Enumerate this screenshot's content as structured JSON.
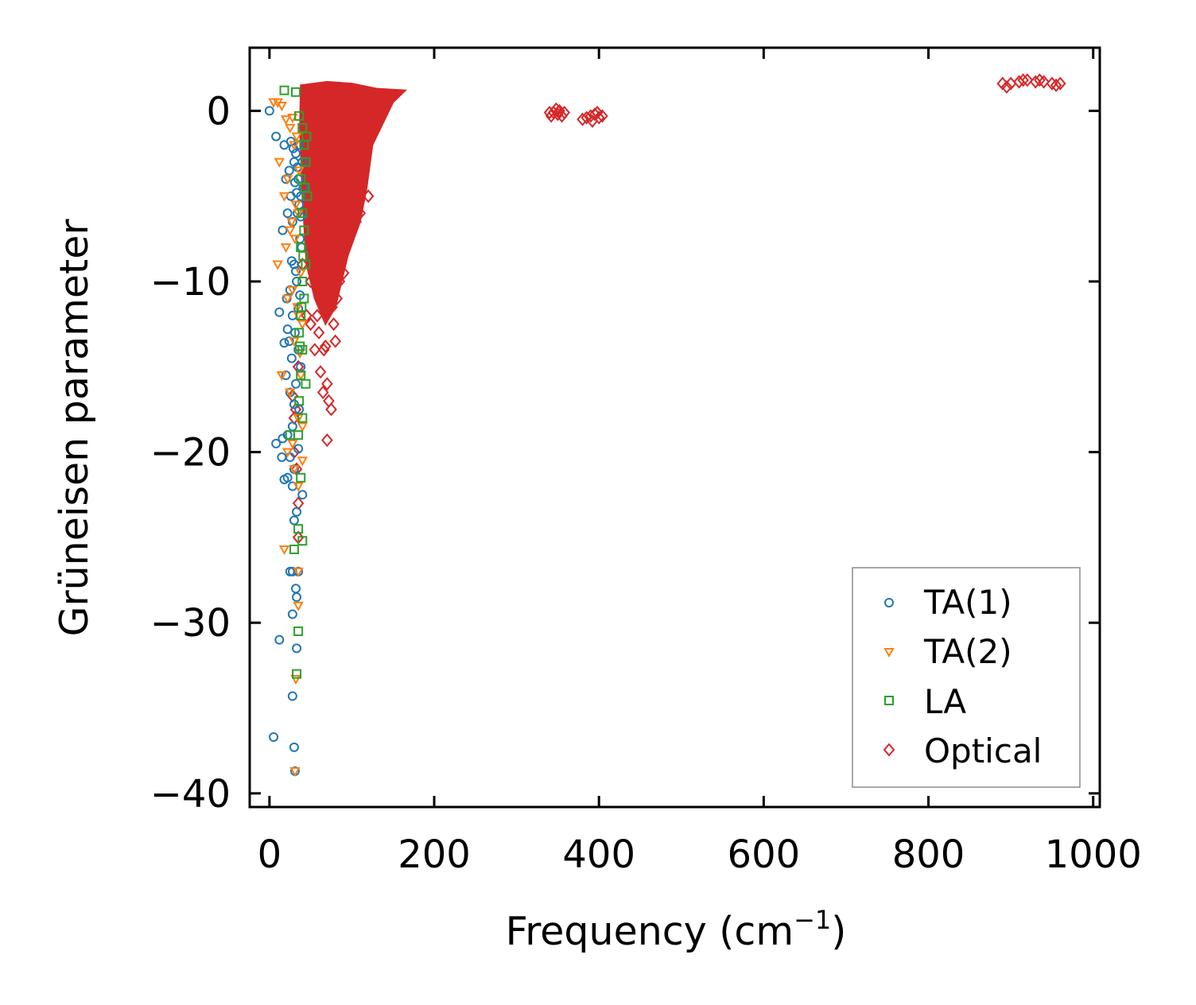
{
  "chart_data": {
    "type": "scatter",
    "title": "",
    "xlabel": "Frequency (cm",
    "xlabel_sup": "−1",
    "xlabel_close": ")",
    "ylabel": "Grüneisen parameter",
    "xlim": [
      -24,
      1008
    ],
    "ylim": [
      -40.8,
      3.7
    ],
    "xticks": [
      0,
      200,
      400,
      600,
      800,
      1000
    ],
    "xtick_labels": [
      "0",
      "200",
      "400",
      "600",
      "800",
      "1000"
    ],
    "yticks": [
      0,
      -10,
      -20,
      -30,
      -40
    ],
    "ytick_labels": [
      "0",
      "−10",
      "−20",
      "−30",
      "−40"
    ],
    "grid": false,
    "legend_position": "lower-right",
    "series": [
      {
        "name": "TA(1)",
        "marker": "circle",
        "color": "#1f77b4",
        "points": [
          [
            0,
            0
          ],
          [
            8,
            -1.5
          ],
          [
            18,
            -2
          ],
          [
            20,
            -4
          ],
          [
            24,
            -3.5
          ],
          [
            26,
            -5
          ],
          [
            22,
            -6
          ],
          [
            16,
            -7
          ],
          [
            28,
            -6.5
          ],
          [
            30,
            -3
          ],
          [
            32,
            -2.5
          ],
          [
            35,
            -4
          ],
          [
            36,
            -2
          ],
          [
            38,
            -5
          ],
          [
            40,
            -3
          ],
          [
            34,
            -6
          ],
          [
            37,
            -7.5
          ],
          [
            39,
            -8
          ],
          [
            41,
            -4.5
          ],
          [
            30,
            -9
          ],
          [
            33,
            -10
          ],
          [
            25,
            -10.5
          ],
          [
            21,
            -11
          ],
          [
            12,
            -11.8
          ],
          [
            28,
            -12
          ],
          [
            22,
            -12.8
          ],
          [
            31,
            -13
          ],
          [
            24,
            -13.5
          ],
          [
            18,
            -13.6
          ],
          [
            35,
            -14
          ],
          [
            27,
            -14.5
          ],
          [
            38,
            -15
          ],
          [
            20,
            -15.5
          ],
          [
            32,
            -16
          ],
          [
            25,
            -16.5
          ],
          [
            30,
            -17.2
          ],
          [
            36,
            -17.5
          ],
          [
            28,
            -18.5
          ],
          [
            22,
            -19
          ],
          [
            16,
            -19.2
          ],
          [
            8,
            -19.5
          ],
          [
            35,
            -19.8
          ],
          [
            25,
            -20.3
          ],
          [
            15,
            -20.3
          ],
          [
            30,
            -21
          ],
          [
            22,
            -21.5
          ],
          [
            18,
            -21.6
          ],
          [
            28,
            -22
          ],
          [
            40,
            -22.5
          ],
          [
            33,
            -23.5
          ],
          [
            30,
            -24
          ],
          [
            25,
            -27
          ],
          [
            28,
            -27
          ],
          [
            35,
            -27
          ],
          [
            32,
            -28
          ],
          [
            33,
            -28.5
          ],
          [
            28,
            -29.5
          ],
          [
            12,
            -31
          ],
          [
            33,
            -31.5
          ],
          [
            28,
            -34.3
          ],
          [
            5,
            -36.7
          ],
          [
            30,
            -37.3
          ],
          [
            31,
            -38.7
          ],
          [
            26,
            -1.8
          ],
          [
            29,
            -2.2
          ],
          [
            31,
            -4.2
          ],
          [
            33,
            -4.8
          ],
          [
            36,
            -5.5
          ],
          [
            38,
            -6.2
          ],
          [
            34,
            -3.3
          ],
          [
            27,
            -8.8
          ],
          [
            32,
            -9.4
          ],
          [
            37,
            -10.8
          ],
          [
            35,
            -11.6
          ]
        ]
      },
      {
        "name": "TA(2)",
        "marker": "triangle-down",
        "color": "#ff7f0e",
        "points": [
          [
            5,
            0.5
          ],
          [
            10,
            0.5
          ],
          [
            15,
            0.3
          ],
          [
            20,
            -0.5
          ],
          [
            25,
            -1
          ],
          [
            28,
            -0.4
          ],
          [
            30,
            -2
          ],
          [
            12,
            -3
          ],
          [
            22,
            -4
          ],
          [
            18,
            -5
          ],
          [
            32,
            -5.5
          ],
          [
            35,
            -6
          ],
          [
            25,
            -7
          ],
          [
            20,
            -8
          ],
          [
            10,
            -9
          ],
          [
            38,
            -9.5
          ],
          [
            28,
            -10.5
          ],
          [
            22,
            -11
          ],
          [
            35,
            -12
          ],
          [
            40,
            -12.5
          ],
          [
            30,
            -13.5
          ],
          [
            15,
            -15.5
          ],
          [
            38,
            -15.5
          ],
          [
            25,
            -16.5
          ],
          [
            35,
            -18
          ],
          [
            40,
            -18.5
          ],
          [
            28,
            -19.5
          ],
          [
            22,
            -20
          ],
          [
            40,
            -20.5
          ],
          [
            30,
            -21
          ],
          [
            35,
            -22
          ],
          [
            18,
            -25.7
          ],
          [
            35,
            -27
          ],
          [
            35,
            -29
          ],
          [
            32,
            -33.3
          ],
          [
            31,
            -38.7
          ],
          [
            33,
            -1.5
          ],
          [
            36,
            -3.5
          ],
          [
            27,
            -6.5
          ],
          [
            31,
            -7.5
          ],
          [
            34,
            -11.5
          ],
          [
            37,
            -14.2
          ]
        ]
      },
      {
        "name": "LA",
        "marker": "square",
        "color": "#2ca02c",
        "points": [
          [
            18,
            1.2
          ],
          [
            32,
            1.1
          ],
          [
            36,
            -0.3
          ],
          [
            40,
            -1
          ],
          [
            42,
            -2
          ],
          [
            44,
            -3
          ],
          [
            38,
            -4
          ],
          [
            46,
            -5
          ],
          [
            40,
            -6
          ],
          [
            42,
            -7
          ],
          [
            38,
            -8
          ],
          [
            44,
            -9
          ],
          [
            40,
            -10
          ],
          [
            42,
            -11
          ],
          [
            38,
            -12
          ],
          [
            36,
            -13
          ],
          [
            40,
            -14
          ],
          [
            38,
            -15.5
          ],
          [
            44,
            -16
          ],
          [
            36,
            -17
          ],
          [
            40,
            -18
          ],
          [
            35,
            -19
          ],
          [
            25,
            -19
          ],
          [
            38,
            -21.5
          ],
          [
            30,
            -25.7
          ],
          [
            35,
            -24.5
          ],
          [
            40,
            -25.2
          ],
          [
            35,
            -30.5
          ],
          [
            33,
            -33
          ],
          [
            45,
            -1.5
          ],
          [
            43,
            -4.5
          ],
          [
            41,
            -8.5
          ],
          [
            39,
            -11.5
          ],
          [
            37,
            -13.8
          ]
        ]
      },
      {
        "name": "Optical",
        "marker": "diamond",
        "color": "#d62728",
        "points": [
          [
            40,
            -9
          ],
          [
            45,
            -12
          ],
          [
            50,
            -10
          ],
          [
            55,
            -14
          ],
          [
            60,
            -13
          ],
          [
            62,
            -15.3
          ],
          [
            65,
            -16.5
          ],
          [
            70,
            -16
          ],
          [
            72,
            -17
          ],
          [
            75,
            -17.5
          ],
          [
            70,
            -19.3
          ],
          [
            80,
            -13.5
          ],
          [
            76,
            -11.5
          ],
          [
            82,
            -11
          ],
          [
            85,
            -10
          ],
          [
            90,
            -9.5
          ],
          [
            95,
            -7.5
          ],
          [
            100,
            -7
          ],
          [
            105,
            -6.5
          ],
          [
            110,
            -6
          ],
          [
            120,
            -5
          ],
          [
            50,
            -12.5
          ],
          [
            58,
            -12
          ],
          [
            66,
            -14
          ],
          [
            35,
            -23
          ],
          [
            35,
            -25
          ],
          [
            30,
            -18
          ],
          [
            30,
            -20
          ],
          [
            33,
            -21
          ],
          [
            28,
            -16.7
          ],
          [
            35,
            -15
          ],
          [
            32,
            -17.5
          ],
          [
            78,
            -12.5
          ],
          [
            68,
            -13.8
          ],
          [
            345,
            -0.1
          ],
          [
            350,
            -0.2
          ],
          [
            352,
            0
          ],
          [
            355,
            -0.3
          ],
          [
            340,
            -0.1
          ],
          [
            342,
            -0.3
          ],
          [
            348,
            0.1
          ],
          [
            358,
            -0.1
          ],
          [
            385,
            -0.4
          ],
          [
            390,
            -0.3
          ],
          [
            395,
            -0.2
          ],
          [
            400,
            -0.4
          ],
          [
            380,
            -0.5
          ],
          [
            392,
            -0.6
          ],
          [
            398,
            -0.1
          ],
          [
            404,
            -0.3
          ],
          [
            890,
            1.6
          ],
          [
            900,
            1.6
          ],
          [
            910,
            1.7
          ],
          [
            920,
            1.8
          ],
          [
            930,
            1.7
          ],
          [
            940,
            1.7
          ],
          [
            950,
            1.6
          ],
          [
            960,
            1.6
          ],
          [
            895,
            1.4
          ],
          [
            915,
            1.8
          ],
          [
            935,
            1.8
          ],
          [
            955,
            1.5
          ]
        ]
      }
    ]
  },
  "legend": {
    "entries": [
      "TA(1)",
      "TA(2)",
      "LA",
      "Optical"
    ]
  },
  "colors": {
    "ta1": "#1f77b4",
    "ta2": "#ff7f0e",
    "la": "#2ca02c",
    "optical": "#d62728",
    "legend_border": "#8c8c8c"
  }
}
